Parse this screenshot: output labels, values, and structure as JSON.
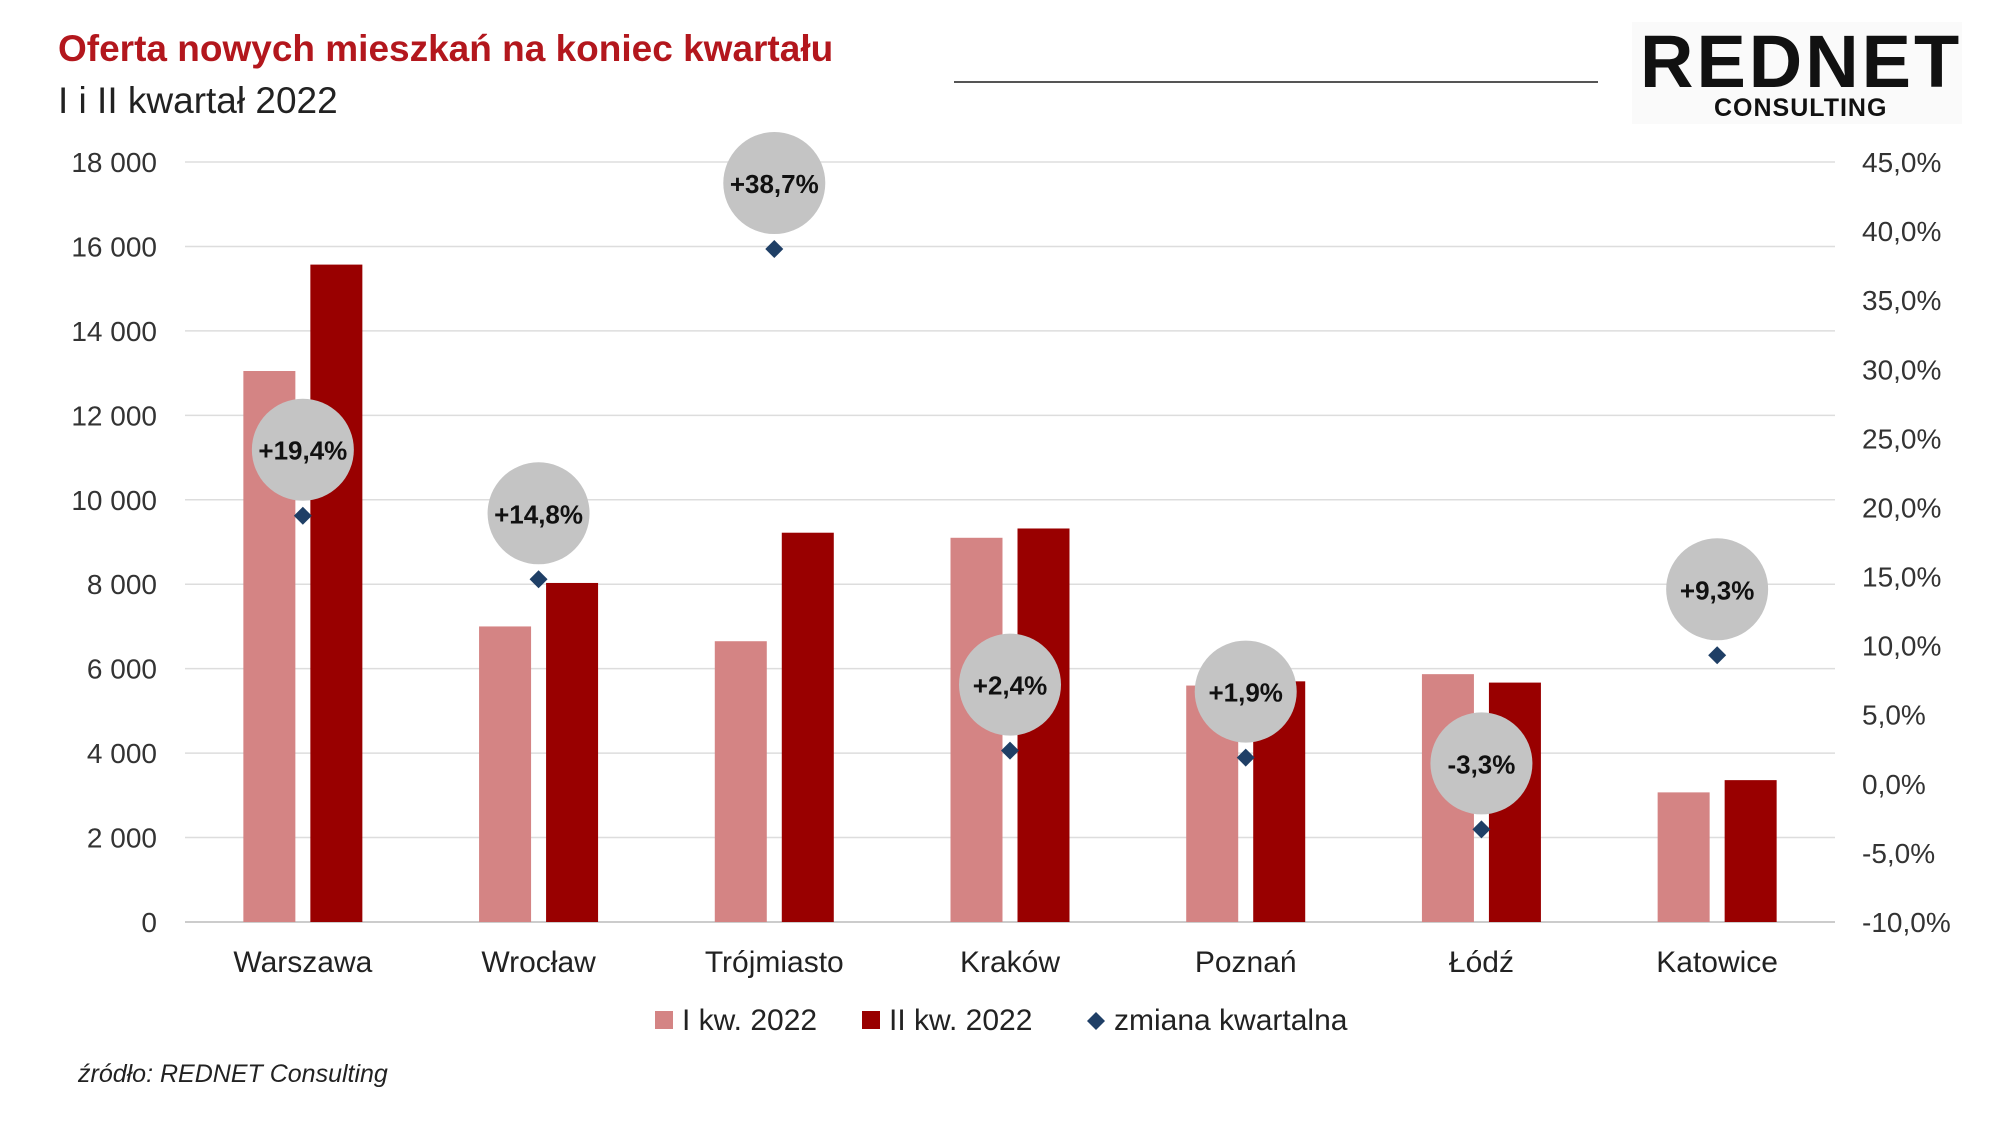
{
  "header": {
    "title": "Oferta nowych mieszkań na koniec kwartału",
    "subtitle": "I i II kwartał 2022"
  },
  "logo": {
    "main": "REDNET",
    "sub": "CONSULTING"
  },
  "source": "źródło: REDNET Consulting",
  "colors": {
    "q1": "#d48484",
    "q2": "#990000",
    "change": "#1f3f66",
    "bubble": "#c4c4c4",
    "grid": "#dddddd",
    "title": "#b3171d"
  },
  "chart_data": {
    "type": "bar",
    "categories": [
      "Warszawa",
      "Wrocław",
      "Trójmiasto",
      "Kraków",
      "Poznań",
      "Łódź",
      "Katowice"
    ],
    "series": [
      {
        "name": "I kw. 2022",
        "axis": "left",
        "values": [
          13050,
          7000,
          6650,
          9100,
          5600,
          5870,
          3070
        ]
      },
      {
        "name": "II kw. 2022",
        "axis": "left",
        "values": [
          15570,
          8030,
          9220,
          9320,
          5700,
          5670,
          3360
        ]
      },
      {
        "name": "zmiana kwartalna",
        "axis": "right",
        "type": "scatter",
        "values": [
          19.4,
          14.8,
          38.7,
          2.4,
          1.9,
          -3.3,
          9.3
        ]
      }
    ],
    "change_labels": [
      "+19,4%",
      "+14,8%",
      "+38,7%",
      "+2,4%",
      "+1,9%",
      "-3,3%",
      "+9,3%"
    ],
    "y_left": {
      "min": 0,
      "max": 18000,
      "step": 2000,
      "ticks": [
        "0",
        "2 000",
        "4 000",
        "6 000",
        "8 000",
        "10 000",
        "12 000",
        "14 000",
        "16 000",
        "18 000"
      ]
    },
    "y_right": {
      "min": -10,
      "max": 45,
      "step": 5,
      "ticks": [
        "-10,0%",
        "-5,0%",
        "0,0%",
        "5,0%",
        "10,0%",
        "15,0%",
        "20,0%",
        "25,0%",
        "30,0%",
        "35,0%",
        "40,0%",
        "45,0%"
      ]
    },
    "grid": true,
    "legend_position": "bottom"
  }
}
